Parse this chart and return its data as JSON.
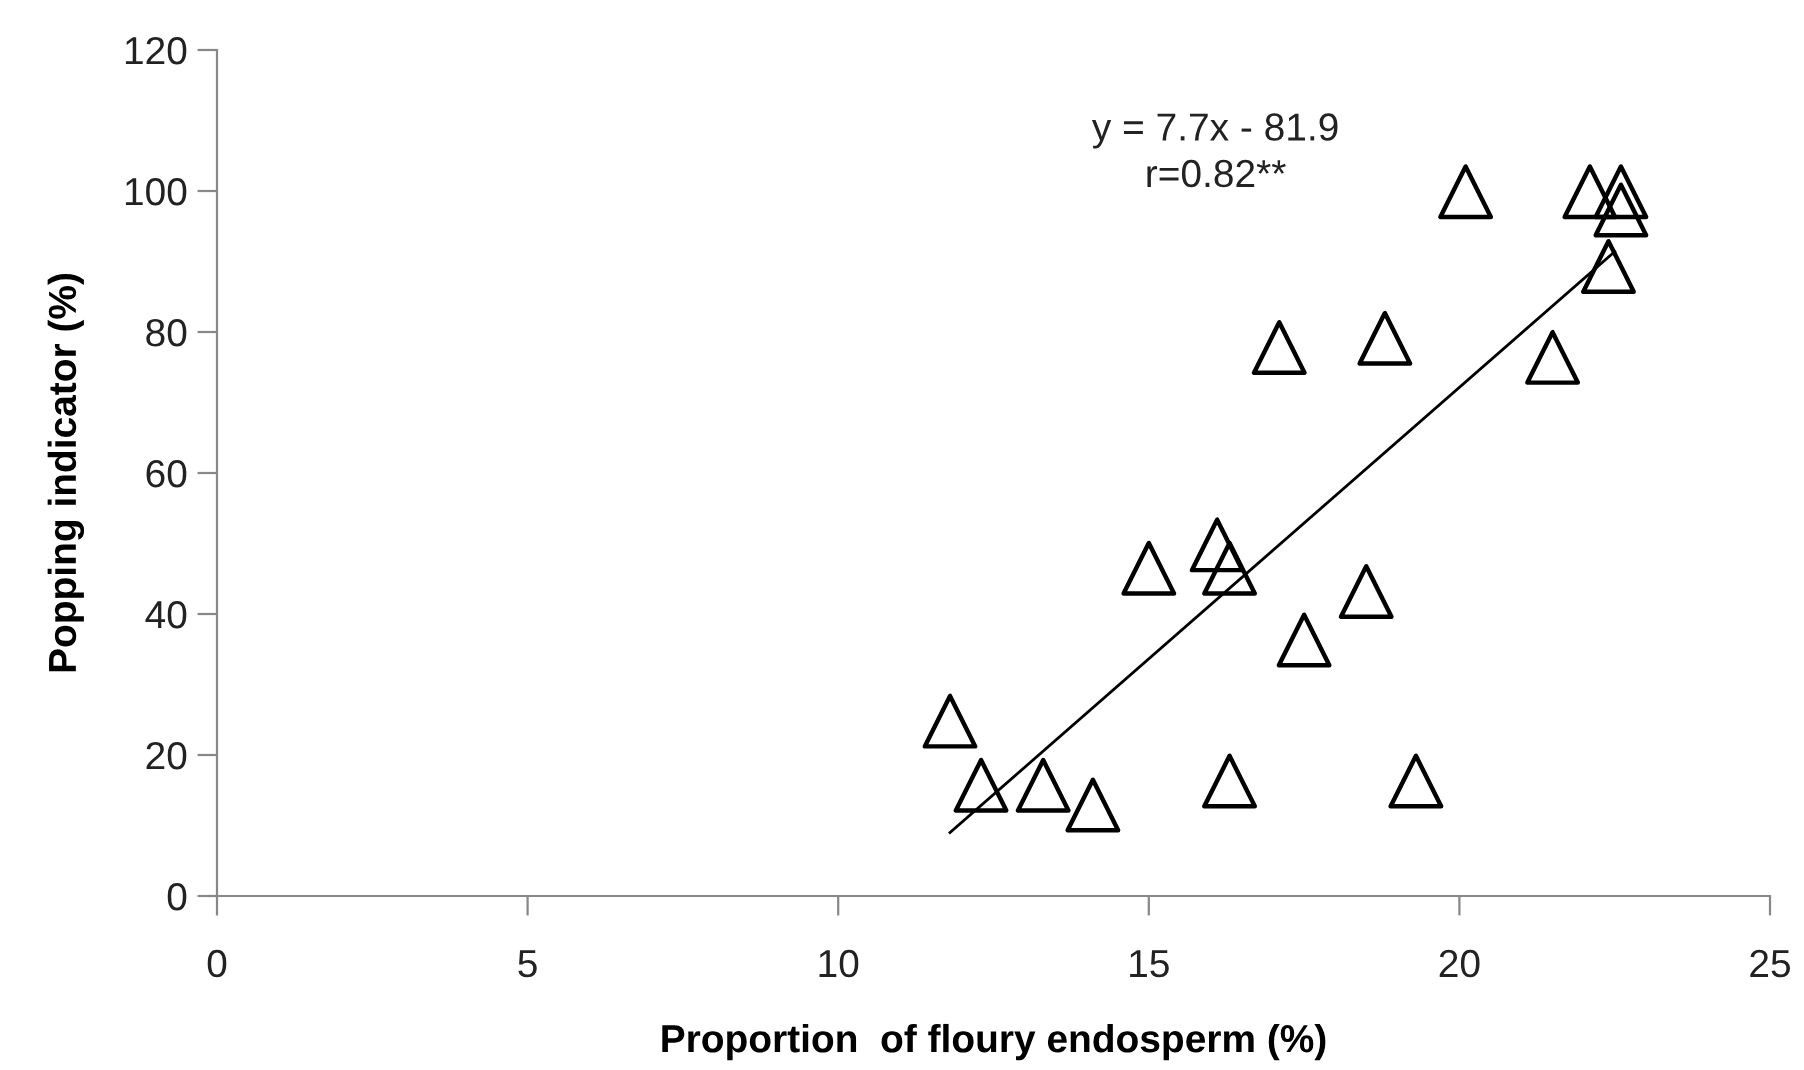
{
  "chart_data": {
    "type": "scatter",
    "xlabel": "Proportion  of floury endosperm (%)",
    "ylabel": "Popping indicator (%)",
    "xlim": [
      0,
      25
    ],
    "xticks": [
      0,
      5,
      10,
      15,
      20,
      25
    ],
    "ylim": [
      0,
      120
    ],
    "yticks": [
      0,
      20,
      40,
      60,
      80,
      100,
      120
    ],
    "grid": false,
    "legend": false,
    "series": [
      {
        "marker": "triangle",
        "color": "#000000",
        "x": [
          11.8,
          12.3,
          13.3,
          14.1,
          15.0,
          16.1,
          16.3,
          16.3,
          17.1,
          17.5,
          18.5,
          18.8,
          19.3,
          20.1,
          21.5,
          22.1,
          22.6,
          22.6,
          22.4
        ],
        "values": [
          24.8,
          15.7,
          15.7,
          12.9,
          46.5,
          49.8,
          46.5,
          16.3,
          77.8,
          36.3,
          43.2,
          79.1,
          16.3,
          99.9,
          76.4,
          99.9,
          99.9,
          97.3,
          89.3
        ]
      },
      {
        "type": "line",
        "color": "#000000",
        "x": [
          11.8,
          22.5
        ],
        "values": [
          9.0,
          91.4
        ]
      }
    ],
    "annotations": [
      "y = 7.7x - 81.9",
      "r=0.82**"
    ]
  }
}
